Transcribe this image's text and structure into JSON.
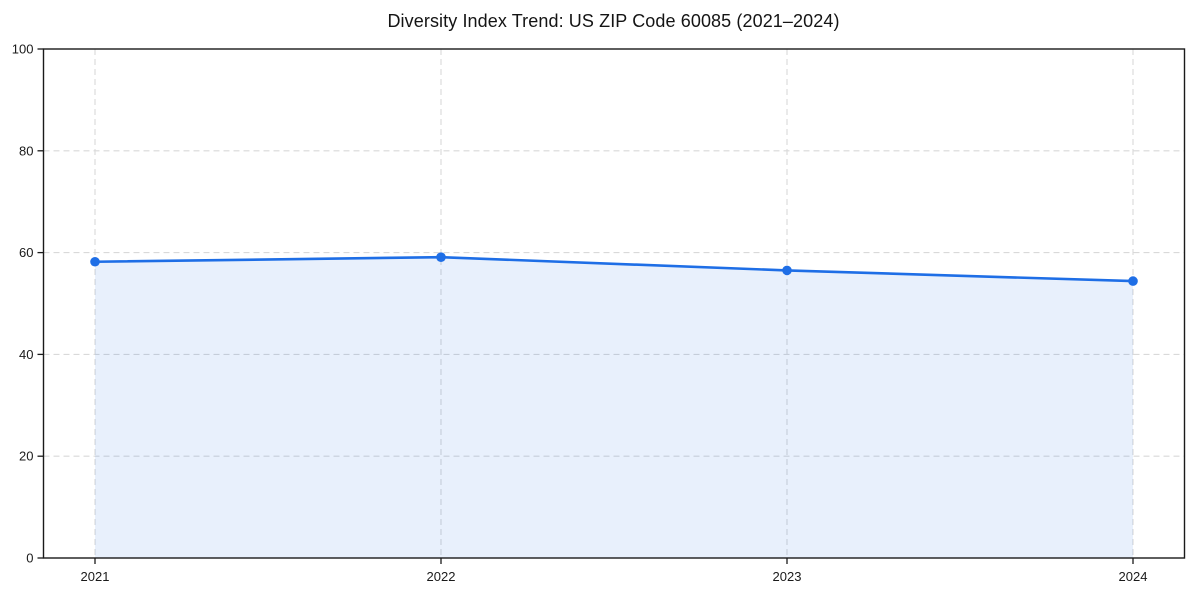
{
  "page": {
    "background": "#ffffff"
  },
  "chart_data": {
    "type": "line",
    "subtype": "line-with-area-fill-and-markers",
    "title": "Diversity Index Trend: US ZIP Code 60085 (2021–2024)",
    "x": [
      "2021",
      "2022",
      "2023",
      "2024"
    ],
    "series": [
      {
        "name": "Diversity Index",
        "values": [
          58.2,
          59.1,
          56.5,
          54.4
        ]
      }
    ],
    "xlabel": "",
    "ylabel": "",
    "ylim": [
      0,
      100
    ],
    "yticks": [
      0,
      20,
      40,
      60,
      80,
      100
    ],
    "grid": "on-dashed-both-axes",
    "legend": "none",
    "colors": {
      "line": "#1e6ee6",
      "marker": "#1e6ee6",
      "fill": "rgba(30, 110, 230, 0.10)",
      "gridline": "#d9d9d9",
      "spine": "#1a1a1a",
      "tick_text": "#1a1a1a"
    }
  }
}
